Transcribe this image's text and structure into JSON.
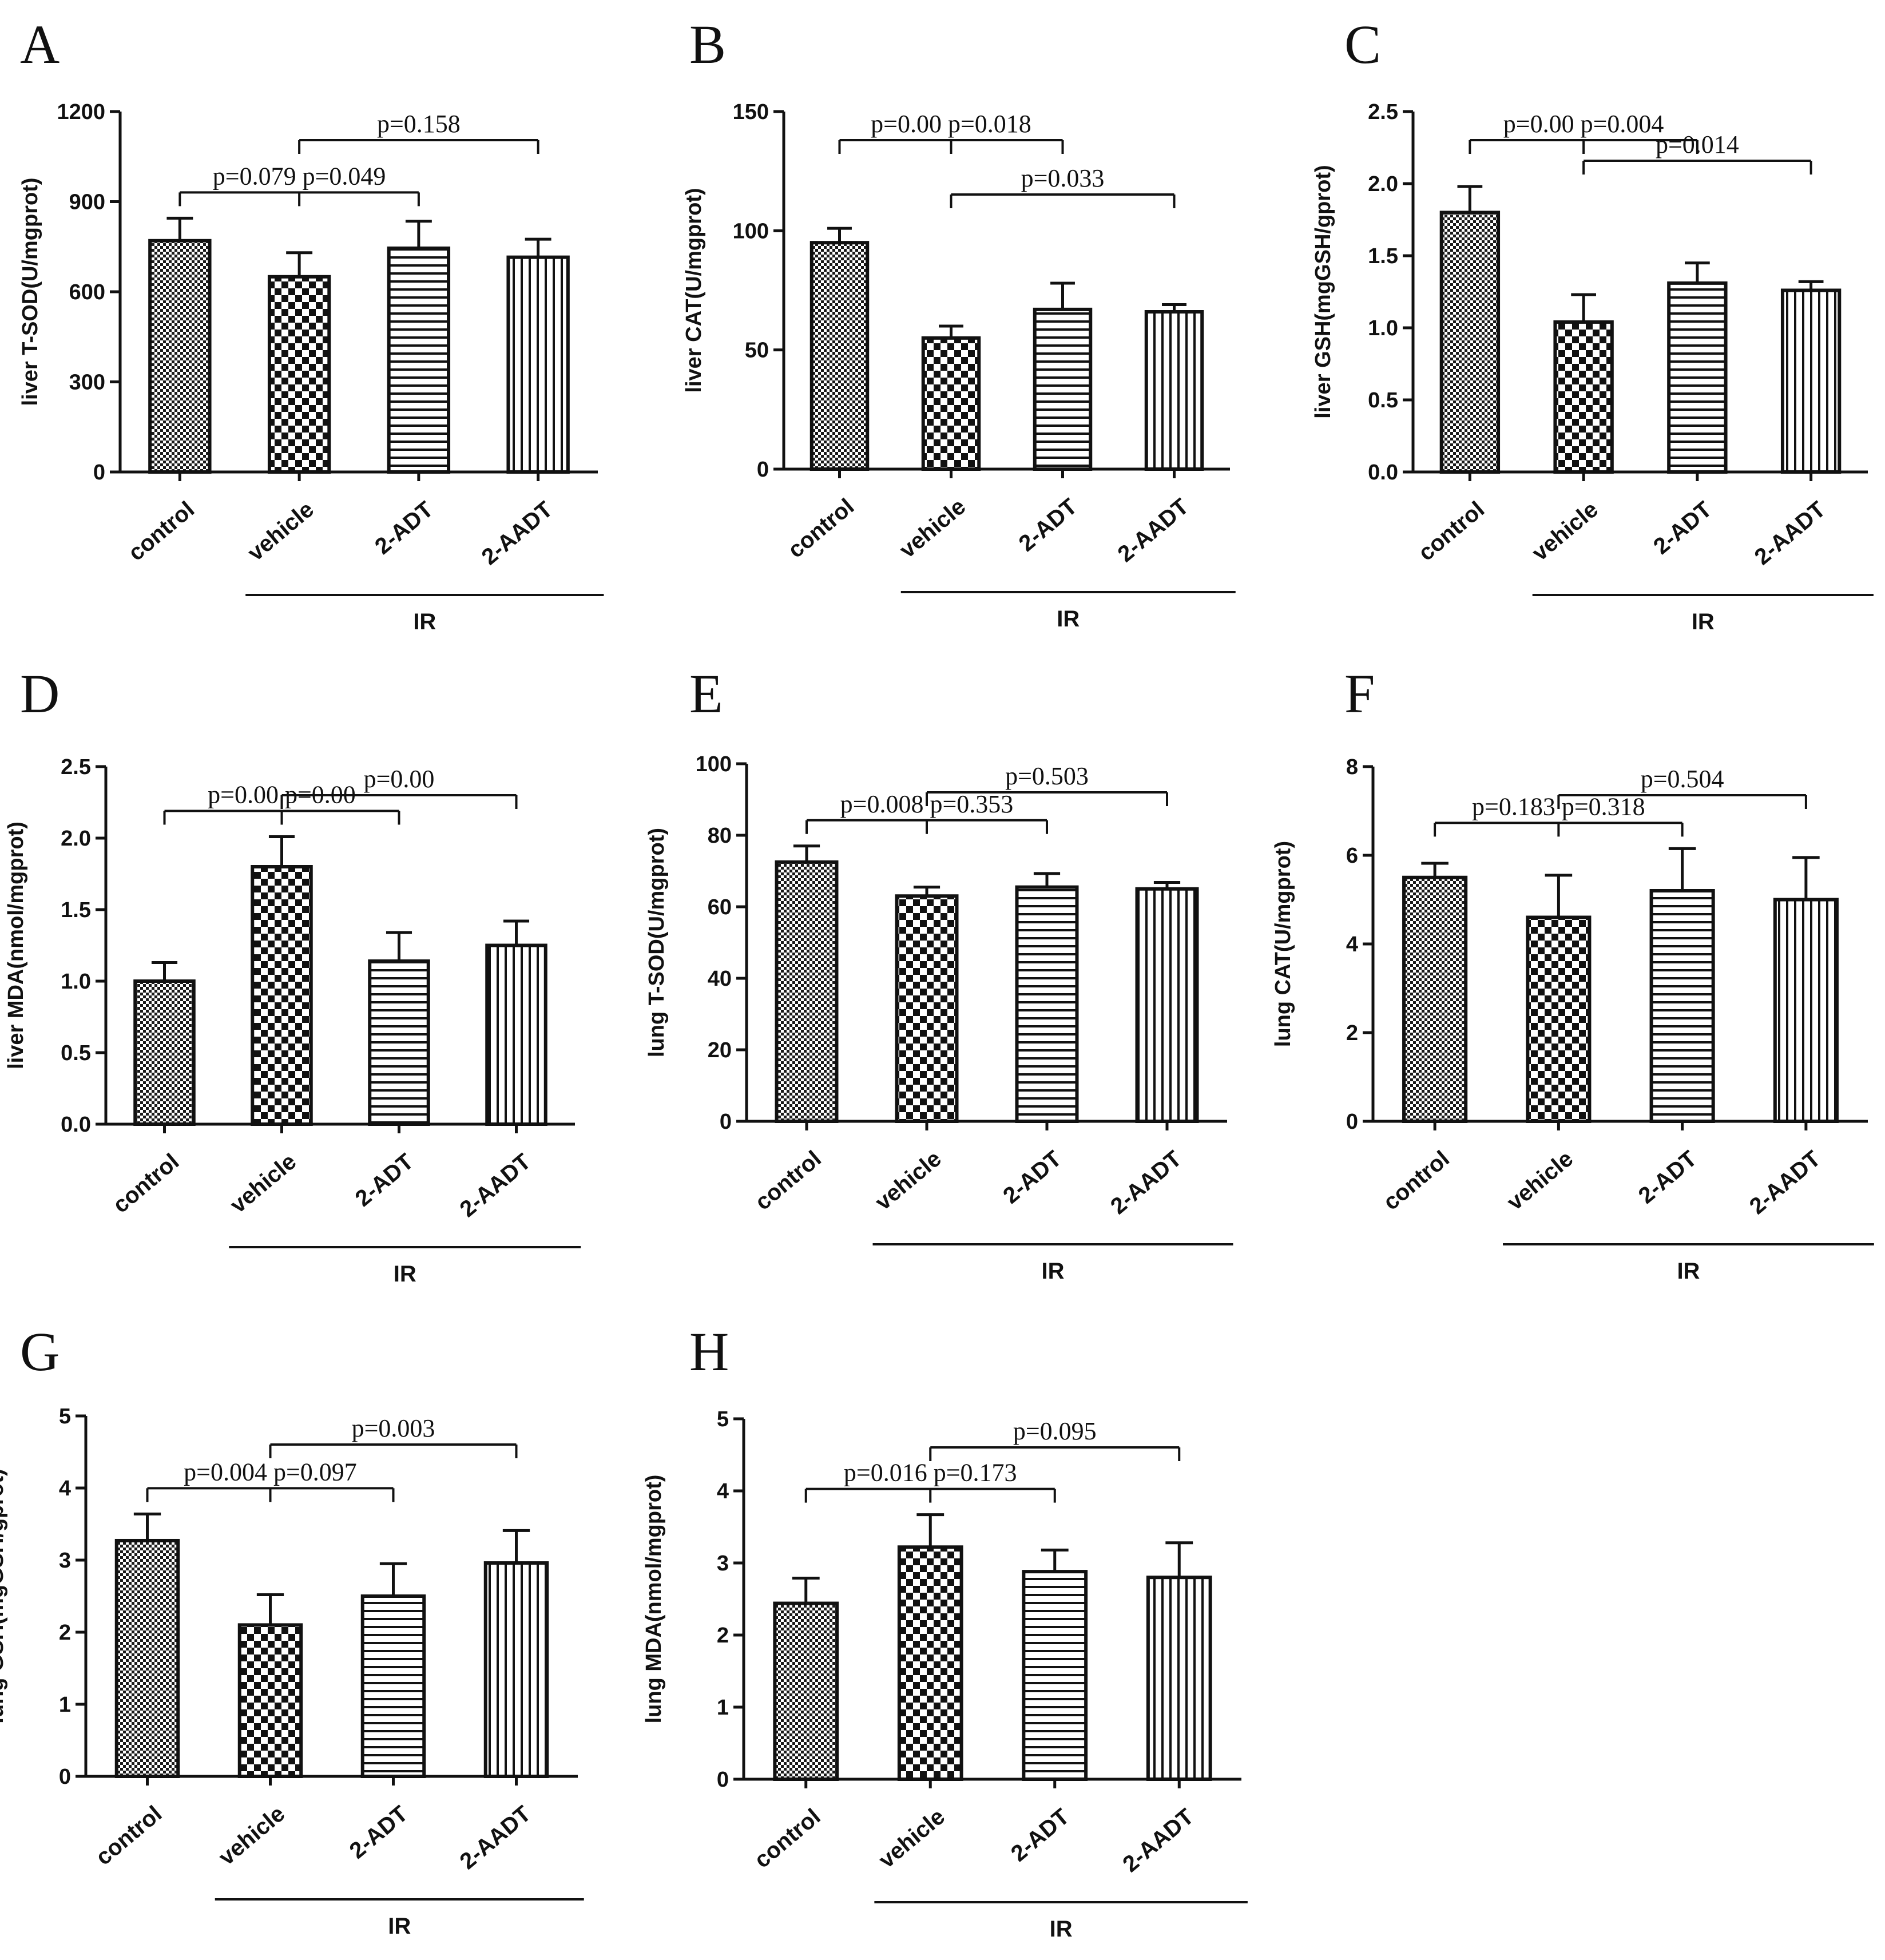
{
  "figure": {
    "pattern_names": [
      "dense-checker",
      "coarse-checker",
      "horizontal-stripes",
      "vertical-stripes"
    ],
    "bar_color": "#111111",
    "background": "#ffffff"
  },
  "chart_data": [
    {
      "panel": "A",
      "type": "bar",
      "title": "",
      "xlabel": "",
      "ylabel": "liver T-SOD(U/mgprot)",
      "categories": [
        "control",
        "vehicle",
        "2-ADT",
        "2-AADT"
      ],
      "values": [
        770,
        650,
        745,
        715
      ],
      "errors": [
        75,
        80,
        90,
        60
      ],
      "ylim": [
        0,
        1200
      ],
      "yticks": [
        "0",
        "300",
        "600",
        "900",
        "1200"
      ],
      "group_label": "IR",
      "comparisons": [
        {
          "from": 0,
          "to": 2,
          "split": 1,
          "label": "p=0.079 p=0.049",
          "level": 2
        },
        {
          "from": 1,
          "to": 3,
          "split": null,
          "label": "p=0.158",
          "level": 1
        }
      ]
    },
    {
      "panel": "B",
      "type": "bar",
      "title": "",
      "xlabel": "",
      "ylabel": "liver CAT(U/mgprot)",
      "categories": [
        "control",
        "vehicle",
        "2-ADT",
        "2-AADT"
      ],
      "values": [
        95,
        55,
        67,
        66
      ],
      "errors": [
        6,
        5,
        11,
        3
      ],
      "ylim": [
        0,
        150
      ],
      "yticks": [
        "0",
        "50",
        "100",
        "150"
      ],
      "group_label": "IR",
      "comparisons": [
        {
          "from": 0,
          "to": 2,
          "split": 1,
          "label": "p=0.00 p=0.018",
          "level": 1
        },
        {
          "from": 1,
          "to": 3,
          "split": null,
          "label": "p=0.033",
          "level": 2
        }
      ]
    },
    {
      "panel": "C",
      "type": "bar",
      "title": "",
      "xlabel": "",
      "ylabel": "liver GSH(mgGSH/gprot)",
      "categories": [
        "control",
        "vehicle",
        "2-ADT",
        "2-AADT"
      ],
      "values": [
        1.8,
        1.04,
        1.31,
        1.26
      ],
      "errors": [
        0.18,
        0.19,
        0.14,
        0.06
      ],
      "ylim": [
        0,
        2.5
      ],
      "yticks": [
        "0.0",
        "0.5",
        "1.0",
        "1.5",
        "2.0",
        "2.5"
      ],
      "group_label": "IR",
      "comparisons": [
        {
          "from": 0,
          "to": 2,
          "split": 1,
          "label": "p=0.00 p=0.004",
          "level": 1
        },
        {
          "from": 1,
          "to": 3,
          "split": null,
          "label": "p=0.014",
          "level": 2
        }
      ]
    },
    {
      "panel": "D",
      "type": "bar",
      "title": "",
      "xlabel": "",
      "ylabel": "liver MDA(nmol/mgprot)",
      "categories": [
        "control",
        "vehicle",
        "2-ADT",
        "2-AADT"
      ],
      "values": [
        1.0,
        1.8,
        1.14,
        1.25
      ],
      "errors": [
        0.13,
        0.21,
        0.2,
        0.17
      ],
      "ylim": [
        0,
        2.5
      ],
      "yticks": [
        "0.0",
        "0.5",
        "1.0",
        "1.5",
        "2.0",
        "2.5"
      ],
      "group_label": "IR",
      "comparisons": [
        {
          "from": 0,
          "to": 2,
          "split": 1,
          "label": "p=0.00 p=0.00",
          "level": 2
        },
        {
          "from": 1,
          "to": 3,
          "split": null,
          "label": "p=0.00",
          "level": 1
        }
      ]
    },
    {
      "panel": "E",
      "type": "bar",
      "title": "",
      "xlabel": "",
      "ylabel": "lung T-SOD(U/mgprot)",
      "categories": [
        "control",
        "vehicle",
        "2-ADT",
        "2-AADT"
      ],
      "values": [
        72.5,
        63,
        65.5,
        65
      ],
      "errors": [
        4.5,
        2.5,
        3.8,
        1.8
      ],
      "ylim": [
        0,
        100
      ],
      "yticks": [
        "0",
        "20",
        "40",
        "60",
        "80",
        "100"
      ],
      "group_label": "IR",
      "comparisons": [
        {
          "from": 0,
          "to": 2,
          "split": 1,
          "label": "p=0.008 p=0.353",
          "level": 2
        },
        {
          "from": 1,
          "to": 3,
          "split": null,
          "label": "p=0.503",
          "level": 1
        }
      ]
    },
    {
      "panel": "F",
      "type": "bar",
      "title": "",
      "xlabel": "",
      "ylabel": "lung CAT(U/mgprot)",
      "categories": [
        "control",
        "vehicle",
        "2-ADT",
        "2-AADT"
      ],
      "values": [
        5.5,
        4.6,
        5.2,
        5.0
      ],
      "errors": [
        0.32,
        0.95,
        0.95,
        0.95
      ],
      "ylim": [
        0,
        8
      ],
      "yticks": [
        "0",
        "2",
        "4",
        "6",
        "8"
      ],
      "group_label": "IR",
      "comparisons": [
        {
          "from": 0,
          "to": 2,
          "split": 1,
          "label": "p=0.183 p=0.318",
          "level": 2
        },
        {
          "from": 1,
          "to": 3,
          "split": null,
          "label": "p=0.504",
          "level": 1
        }
      ]
    },
    {
      "panel": "G",
      "type": "bar",
      "title": "",
      "xlabel": "",
      "ylabel": "lung GSH(mgGSH/gprot)",
      "categories": [
        "control",
        "vehicle",
        "2-ADT",
        "2-AADT"
      ],
      "values": [
        3.27,
        2.1,
        2.5,
        2.96
      ],
      "errors": [
        0.37,
        0.42,
        0.45,
        0.45
      ],
      "ylim": [
        0,
        5
      ],
      "yticks": [
        "0",
        "1",
        "2",
        "3",
        "4",
        "5"
      ],
      "group_label": "IR",
      "comparisons": [
        {
          "from": 0,
          "to": 2,
          "split": 1,
          "label": "p=0.004 p=0.097",
          "level": 2
        },
        {
          "from": 1,
          "to": 3,
          "split": null,
          "label": "p=0.003",
          "level": 1
        }
      ]
    },
    {
      "panel": "H",
      "type": "bar",
      "title": "",
      "xlabel": "",
      "ylabel": "lung MDA(nmol/mgprot)",
      "categories": [
        "control",
        "vehicle",
        "2-ADT",
        "2-AADT"
      ],
      "values": [
        2.44,
        3.22,
        2.88,
        2.8
      ],
      "errors": [
        0.35,
        0.45,
        0.3,
        0.48
      ],
      "ylim": [
        0,
        5
      ],
      "yticks": [
        "0",
        "1",
        "2",
        "3",
        "4",
        "5"
      ],
      "group_label": "IR",
      "comparisons": [
        {
          "from": 0,
          "to": 2,
          "split": 1,
          "label": "p=0.016 p=0.173",
          "level": 2
        },
        {
          "from": 1,
          "to": 3,
          "split": null,
          "label": "p=0.095",
          "level": 1
        }
      ]
    }
  ]
}
